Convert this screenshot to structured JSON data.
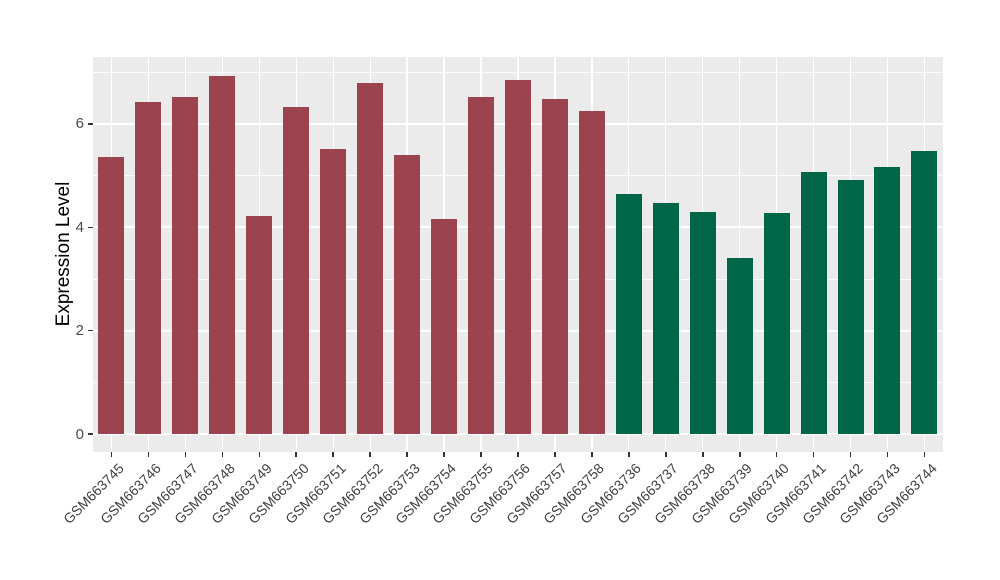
{
  "chart_data": {
    "type": "bar",
    "title": "",
    "xlabel": "",
    "ylabel": "Expression Level",
    "yticks": [
      0,
      2,
      4,
      6
    ],
    "minor_gridlines": [
      1,
      3,
      5,
      7
    ],
    "ylim": [
      -0.35,
      7.3
    ],
    "grid": "on",
    "legend_position": "none",
    "panel_background": "#EBEBEB",
    "gridline_color": "#FFFFFF",
    "tick_color": "#333333",
    "axis_text_color": "#4D4D4D",
    "group_colors": {
      "maroon": "#9C4350",
      "green": "#016648"
    },
    "bars": [
      {
        "label": "GSM663745",
        "value": 5.36,
        "group": "maroon"
      },
      {
        "label": "GSM663746",
        "value": 6.43,
        "group": "maroon"
      },
      {
        "label": "GSM663747",
        "value": 6.53,
        "group": "maroon"
      },
      {
        "label": "GSM663748",
        "value": 6.92,
        "group": "maroon"
      },
      {
        "label": "GSM663749",
        "value": 4.21,
        "group": "maroon"
      },
      {
        "label": "GSM663750",
        "value": 6.33,
        "group": "maroon"
      },
      {
        "label": "GSM663751",
        "value": 5.51,
        "group": "maroon"
      },
      {
        "label": "GSM663752",
        "value": 6.79,
        "group": "maroon"
      },
      {
        "label": "GSM663753",
        "value": 5.4,
        "group": "maroon"
      },
      {
        "label": "GSM663754",
        "value": 4.16,
        "group": "maroon"
      },
      {
        "label": "GSM663755",
        "value": 6.52,
        "group": "maroon"
      },
      {
        "label": "GSM663756",
        "value": 6.85,
        "group": "maroon"
      },
      {
        "label": "GSM663757",
        "value": 6.48,
        "group": "maroon"
      },
      {
        "label": "GSM663758",
        "value": 6.26,
        "group": "maroon"
      },
      {
        "label": "GSM663736",
        "value": 4.64,
        "group": "green"
      },
      {
        "label": "GSM663737",
        "value": 4.48,
        "group": "green"
      },
      {
        "label": "GSM663738",
        "value": 4.3,
        "group": "green"
      },
      {
        "label": "GSM663739",
        "value": 3.4,
        "group": "green"
      },
      {
        "label": "GSM663740",
        "value": 4.27,
        "group": "green"
      },
      {
        "label": "GSM663741",
        "value": 5.07,
        "group": "green"
      },
      {
        "label": "GSM663742",
        "value": 4.91,
        "group": "green"
      },
      {
        "label": "GSM663743",
        "value": 5.17,
        "group": "green"
      },
      {
        "label": "GSM663744",
        "value": 5.48,
        "group": "green"
      }
    ]
  }
}
